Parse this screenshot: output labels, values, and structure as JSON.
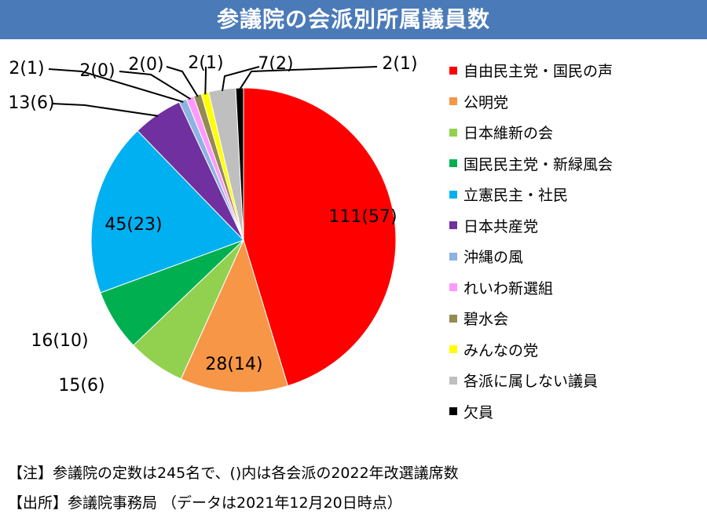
{
  "header": {
    "title": "参議院の会派別所属議員数"
  },
  "chart_data": {
    "type": "pie",
    "title": "参議院の会派別所属議員数",
    "slices": [
      {
        "name": "自由民主党・国民の声",
        "value": 111,
        "label": "111(57)",
        "color": "#ff0000"
      },
      {
        "name": "公明党",
        "value": 28,
        "label": "28(14)",
        "color": "#f79646"
      },
      {
        "name": "日本維新の会",
        "value": 15,
        "label": "15(6)",
        "color": "#92d050"
      },
      {
        "name": "国民民主党・新緑風会",
        "value": 16,
        "label": "16(10)",
        "color": "#00b050"
      },
      {
        "name": "立憲民主・社民",
        "value": 45,
        "label": "45(23)",
        "color": "#00b0f0"
      },
      {
        "name": "日本共産党",
        "value": 13,
        "label": "13(6)",
        "color": "#7030a0"
      },
      {
        "name": "沖縄の風",
        "value": 2,
        "label": "2(1)",
        "color": "#8db3e2"
      },
      {
        "name": "れいわ新選組",
        "value": 2,
        "label": "2(0)",
        "color": "#ff99ff"
      },
      {
        "name": "碧水会",
        "value": 2,
        "label": "2(0)",
        "color": "#948a54"
      },
      {
        "name": "みんなの党",
        "value": 2,
        "label": "2(1)",
        "color": "#ffff00"
      },
      {
        "name": "各派に属しない議員",
        "value": 7,
        "label": "7(2)",
        "color": "#bfbfbf"
      },
      {
        "name": "欠員",
        "value": 2,
        "label": "2(1)",
        "color": "#000000"
      }
    ],
    "legend_position": "right"
  },
  "notes": {
    "note1": "【注】参議院の定数は245名で、()内は各会派の2022年改選議席数",
    "note2": "【出所】参議院事務局 （データは2021年12月20日時点）"
  }
}
